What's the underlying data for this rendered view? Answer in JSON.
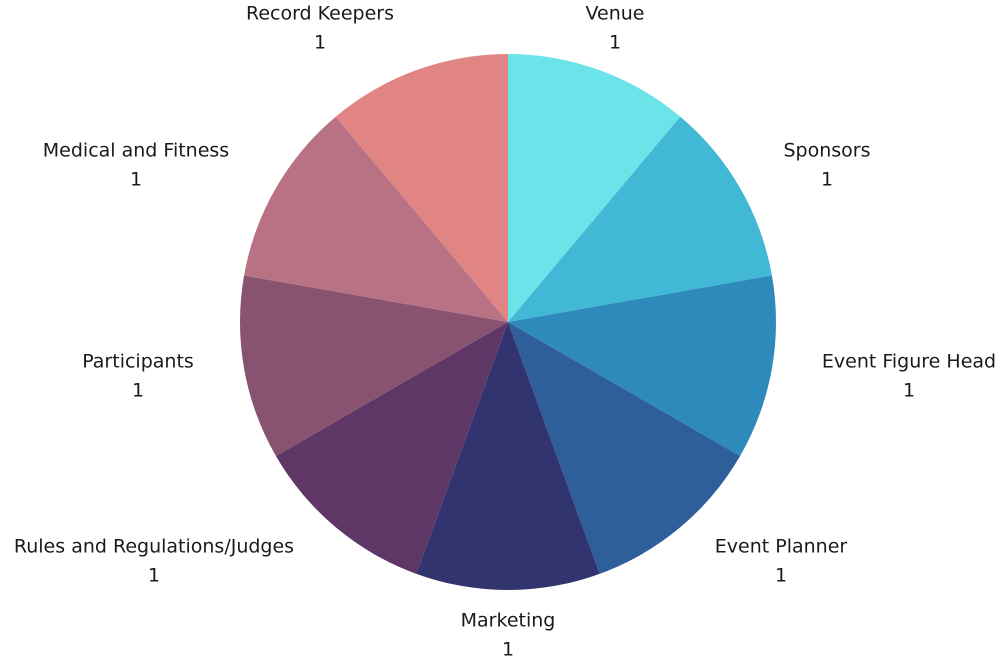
{
  "chart_data": {
    "type": "pie",
    "title": "",
    "start_angle_deg": 0,
    "direction": "clockwise",
    "legend": "none",
    "slices": [
      {
        "label": "Venue",
        "value": 1,
        "color": "#6AE4E8"
      },
      {
        "label": "Sponsors",
        "value": 1,
        "color": "#42B8D7"
      },
      {
        "label": "Event Figure Head",
        "value": 1,
        "color": "#2D8ABB"
      },
      {
        "label": "Event Planner",
        "value": 1,
        "color": "#2E5F9B"
      },
      {
        "label": "Marketing",
        "value": 1,
        "color": "#31346E"
      },
      {
        "label": "Rules and Regulations/Judges",
        "value": 1,
        "color": "#5E3766"
      },
      {
        "label": "Participants",
        "value": 1,
        "color": "#885271"
      },
      {
        "label": "Medical and Fitness",
        "value": 1,
        "color": "#B87283"
      },
      {
        "label": "Record Keepers",
        "value": 1,
        "color": "#E08584"
      }
    ]
  }
}
